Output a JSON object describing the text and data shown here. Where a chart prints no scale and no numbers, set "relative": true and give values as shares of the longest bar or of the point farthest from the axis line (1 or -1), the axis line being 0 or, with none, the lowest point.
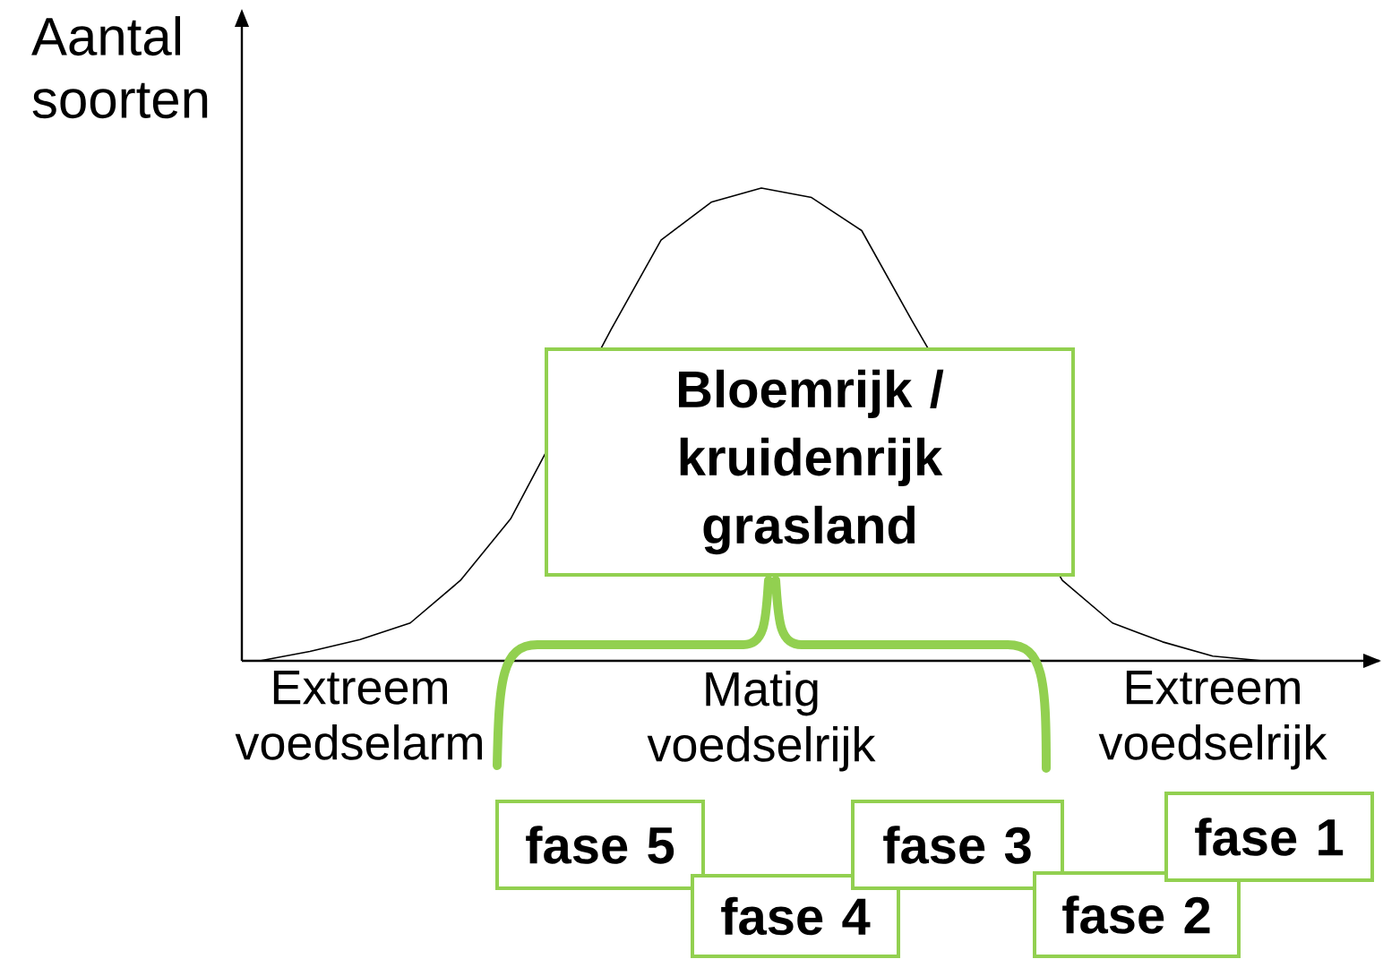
{
  "chart_data": {
    "type": "line",
    "relative": true,
    "ylabel": "Aantal soorten",
    "categories": [
      null,
      null,
      "Extreem voedselarm",
      null,
      null,
      null,
      null,
      null,
      null,
      null,
      "Matig voedselrijk",
      null,
      null,
      null,
      null,
      null,
      null,
      null,
      null,
      "Extreem voedselrijk",
      null
    ],
    "series": [
      {
        "color": "#000000",
        "values": [
          0,
          0.02,
          0.045,
          0.08,
          0.17,
          0.3,
          null,
          0.7,
          0.89,
          0.97,
          1,
          0.98,
          0.91,
          0.72,
          null,
          null,
          0.17,
          0.08,
          0.04,
          0.01,
          0
        ]
      }
    ],
    "annotations": [
      "Bloemrijk / kruidenrijk grasland",
      "fase 5",
      "fase 4",
      "fase 3",
      "fase 2",
      "fase 1"
    ],
    "marker": "none",
    "line_style": "solid",
    "grid": false
  }
}
